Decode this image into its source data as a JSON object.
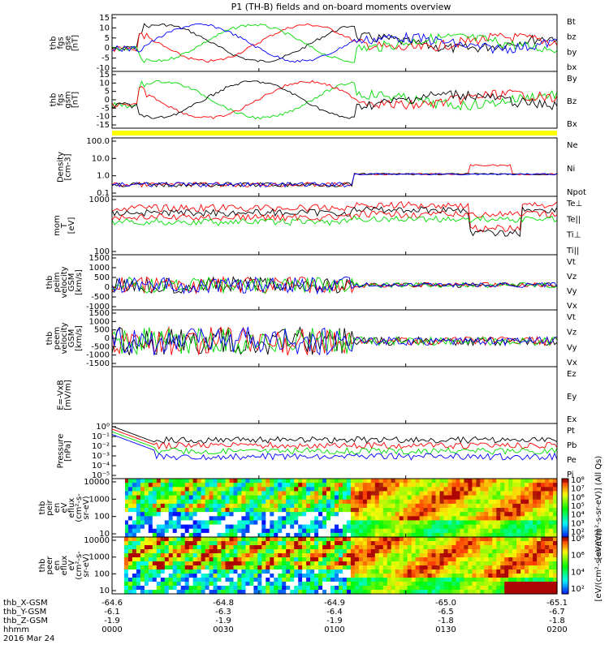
{
  "title": "P1 (TH-B) fields and on-board moments overview",
  "date": "2016 Mar 24",
  "colors": {
    "black": "#000000",
    "red": "#ff0000",
    "green": "#00dd00",
    "blue": "#0000ff",
    "yellow": "#ffff00"
  },
  "panels": [
    {
      "id": "fgs-gse",
      "ylabel": [
        "thb",
        "fgs",
        "gse",
        "[nT]"
      ],
      "yticks": [
        "15",
        "10",
        "5",
        "0",
        "-5",
        "-10"
      ],
      "legend": [
        {
          "t": "Bt",
          "c": "black"
        },
        {
          "t": "bz",
          "c": "red"
        },
        {
          "t": "by",
          "c": "green"
        },
        {
          "t": "bx",
          "c": "blue"
        }
      ]
    },
    {
      "id": "fgs-gsm",
      "ylabel": [
        "thb",
        "fgs",
        "gsm",
        "[nT]"
      ],
      "yticks": [
        "15",
        "10",
        "5",
        "0",
        "-5",
        "-10",
        "-15"
      ],
      "legend": [
        {
          "t": "By",
          "c": "green"
        },
        {
          "t": "Bz",
          "c": "red"
        },
        {
          "t": "Bx",
          "c": "black"
        }
      ]
    },
    {
      "id": "density",
      "ylabel": [
        "Density",
        "[cm-3]"
      ],
      "yticks": [
        "100.0",
        "10.0",
        "1.0",
        "0.1"
      ],
      "legend": [
        {
          "t": "Ne",
          "c": "red"
        },
        {
          "t": "Ni",
          "c": "black"
        },
        {
          "t": "Npot",
          "c": "blue"
        }
      ]
    },
    {
      "id": "temp",
      "ylabel": [
        "mom",
        "T",
        "[eV]"
      ],
      "yticks": [
        "1000",
        "100"
      ],
      "legend": [
        {
          "t": "Te⊥",
          "c": "red"
        },
        {
          "t": "Te||",
          "c": "black"
        },
        {
          "t": "Ti⊥",
          "c": "red"
        },
        {
          "t": "Ti||",
          "c": "green"
        }
      ]
    },
    {
      "id": "peim",
      "ylabel": [
        "thb",
        "peim",
        "velocity",
        "GSM",
        "[km/s]"
      ],
      "yticks": [
        "1500",
        "1000",
        "500",
        "0",
        "-500",
        "-1000"
      ],
      "legend": [
        {
          "t": "Vt",
          "c": "black"
        },
        {
          "t": "Vz",
          "c": "red"
        },
        {
          "t": "Vy",
          "c": "green"
        },
        {
          "t": "Vx",
          "c": "blue"
        }
      ]
    },
    {
      "id": "peem",
      "ylabel": [
        "thb",
        "peem",
        "velocity",
        "GSM",
        "[km/s]"
      ],
      "yticks": [
        "1500",
        "1000",
        "500",
        "0",
        "-500",
        "-1000",
        "-1500"
      ],
      "legend": [
        {
          "t": "Vt",
          "c": "black"
        },
        {
          "t": "Vz",
          "c": "red"
        },
        {
          "t": "Vy",
          "c": "green"
        },
        {
          "t": "Vx",
          "c": "blue"
        }
      ]
    },
    {
      "id": "exb",
      "ylabel": [
        "E=-VxB",
        "[mV/m]"
      ],
      "yticks": [],
      "legend": [
        {
          "t": "Ez",
          "c": "red"
        },
        {
          "t": "Ey",
          "c": "green"
        },
        {
          "t": "Ex",
          "c": "blue"
        }
      ]
    },
    {
      "id": "pressure",
      "ylabel": [
        "Pressure",
        "[nPa]"
      ],
      "yticks": [
        "10⁰",
        "10⁻¹",
        "10⁻²",
        "10⁻³",
        "10⁻⁴",
        "10⁻⁵"
      ],
      "legend": [
        {
          "t": "Pt",
          "c": "black"
        },
        {
          "t": "Pb",
          "c": "red"
        },
        {
          "t": "Pe",
          "c": "green"
        },
        {
          "t": "Pi",
          "c": "blue"
        }
      ]
    },
    {
      "id": "peir",
      "ylabel": [
        "thb",
        "peir",
        "en",
        "eV",
        "eflux",
        "(cm²-s-",
        "sr-eV)"
      ],
      "yticks": [
        "10000",
        "1000",
        "100",
        "10"
      ],
      "legend": []
    },
    {
      "id": "peer",
      "ylabel": [
        "thb",
        "peer",
        "en",
        "eflux",
        "eV",
        "(cm²-s-",
        "sr-eV)"
      ],
      "yticks": [
        "10000",
        "1000",
        "100",
        "10"
      ],
      "legend": []
    }
  ],
  "colorbar": {
    "label1": "[eV/(cm²-s-sr-eV)] (All Qs)",
    "label2": "[eV/(cm²-s-sr-eV)]",
    "ticks1": [
      "10⁸",
      "10⁷",
      "10⁶",
      "10⁵",
      "10⁴",
      "10³",
      "10²"
    ],
    "ticks2": [
      "10⁸",
      "10⁶",
      "10⁴",
      "10²"
    ]
  },
  "xaxis": {
    "rows": [
      {
        "label": "thb_X-GSM",
        "values": [
          "-64.6",
          "-64.8",
          "-64.9",
          "-65.0",
          "-65.1"
        ]
      },
      {
        "label": "thb_Y-GSM",
        "values": [
          "-6.1",
          "-6.3",
          "-6.4",
          "-6.5",
          "-6.7"
        ]
      },
      {
        "label": "thb_Z-GSM",
        "values": [
          "-1.9",
          "-1.9",
          "-1.9",
          "-1.8",
          "-1.8"
        ]
      },
      {
        "label": "hhmm",
        "values": [
          "0000",
          "0030",
          "0100",
          "0130",
          "0200"
        ]
      }
    ]
  },
  "chart_data": {
    "type": "line",
    "x": [
      "0000",
      "0030",
      "0100",
      "0130",
      "0200"
    ],
    "title": "P1 (TH-B) fields and on-board moments overview",
    "series": [
      {
        "name": "Bt",
        "values": [
          0,
          12,
          14,
          6,
          5
        ]
      },
      {
        "name": "bz",
        "values": [
          0,
          5,
          2,
          1,
          3
        ]
      },
      {
        "name": "by",
        "values": [
          0,
          6,
          -5,
          2,
          4
        ]
      },
      {
        "name": "bx",
        "values": [
          0,
          -5,
          -8,
          0,
          -3
        ]
      }
    ]
  }
}
